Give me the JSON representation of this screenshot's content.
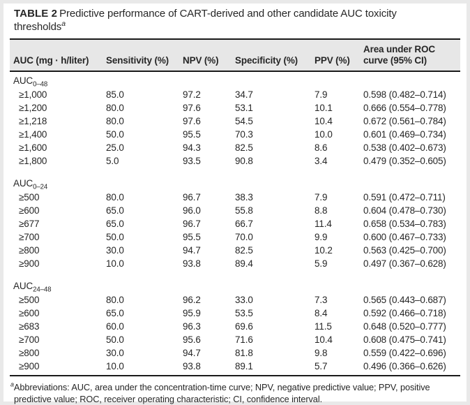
{
  "title": {
    "label": "TABLE 2",
    "text": "Predictive performance of CART-derived and other candidate AUC toxicity thresholds",
    "superscript": "a"
  },
  "table": {
    "headers": [
      "AUC (mg · h/liter)",
      "Sensitivity (%)",
      "NPV (%)",
      "Specificity (%)",
      "PPV (%)",
      "Area under ROC curve (95% CI)"
    ],
    "column_keys": [
      "auc-threshold",
      "sensitivity",
      "npv",
      "specificity",
      "ppv",
      "roc-auc"
    ],
    "sections": [
      {
        "label": "AUC",
        "subscript": "0–48",
        "rows": [
          [
            "≥1,000",
            "85.0",
            "97.2",
            "34.7",
            "7.9",
            "0.598 (0.482–0.714)"
          ],
          [
            "≥1,200",
            "80.0",
            "97.6",
            "53.1",
            "10.1",
            "0.666 (0.554–0.778)"
          ],
          [
            "≥1,218",
            "80.0",
            "97.6",
            "54.5",
            "10.4",
            "0.672 (0.561–0.784)"
          ],
          [
            "≥1,400",
            "50.0",
            "95.5",
            "70.3",
            "10.0",
            "0.601 (0.469–0.734)"
          ],
          [
            "≥1,600",
            "25.0",
            "94.3",
            "82.5",
            "8.6",
            "0.538 (0.402–0.673)"
          ],
          [
            "≥1,800",
            "5.0",
            "93.5",
            "90.8",
            "3.4",
            "0.479 (0.352–0.605)"
          ]
        ]
      },
      {
        "label": "AUC",
        "subscript": "0–24",
        "rows": [
          [
            "≥500",
            "80.0",
            "96.7",
            "38.3",
            "7.9",
            "0.591 (0.472–0.711)"
          ],
          [
            "≥600",
            "65.0",
            "96.0",
            "55.8",
            "8.8",
            "0.604 (0.478–0.730)"
          ],
          [
            "≥677",
            "65.0",
            "96.7",
            "66.7",
            "11.4",
            "0.658 (0.534–0.783)"
          ],
          [
            "≥700",
            "50.0",
            "95.5",
            "70.0",
            "9.9",
            "0.600 (0.467–0.733)"
          ],
          [
            "≥800",
            "30.0",
            "94.7",
            "82.5",
            "10.2",
            "0.563 (0.425–0.700)"
          ],
          [
            "≥900",
            "10.0",
            "93.8",
            "89.4",
            "5.9",
            "0.497 (0.367–0.628)"
          ]
        ]
      },
      {
        "label": "AUC",
        "subscript": "24–48",
        "rows": [
          [
            "≥500",
            "80.0",
            "96.2",
            "33.0",
            "7.3",
            "0.565 (0.443–0.687)"
          ],
          [
            "≥600",
            "65.0",
            "95.9",
            "53.5",
            "8.4",
            "0.592 (0.466–0.718)"
          ],
          [
            "≥683",
            "60.0",
            "96.3",
            "69.6",
            "11.5",
            "0.648 (0.520–0.777)"
          ],
          [
            "≥700",
            "50.0",
            "95.6",
            "71.6",
            "10.4",
            "0.608 (0.475–0.741)"
          ],
          [
            "≥800",
            "30.0",
            "94.7",
            "81.8",
            "9.8",
            "0.559 (0.422–0.696)"
          ],
          [
            "≥900",
            "10.0",
            "93.8",
            "89.1",
            "5.7",
            "0.496 (0.366–0.626)"
          ]
        ]
      }
    ]
  },
  "footnote": {
    "marker": "a",
    "text": "Abbreviations: AUC, area under the concentration-time curve; NPV, negative predictive value; PPV, positive predictive value; ROC, receiver operating characteristic; CI, confidence interval."
  },
  "colors": {
    "header_bg": "#e7e7e7",
    "text": "#262626",
    "border": "#1a1a1a"
  }
}
